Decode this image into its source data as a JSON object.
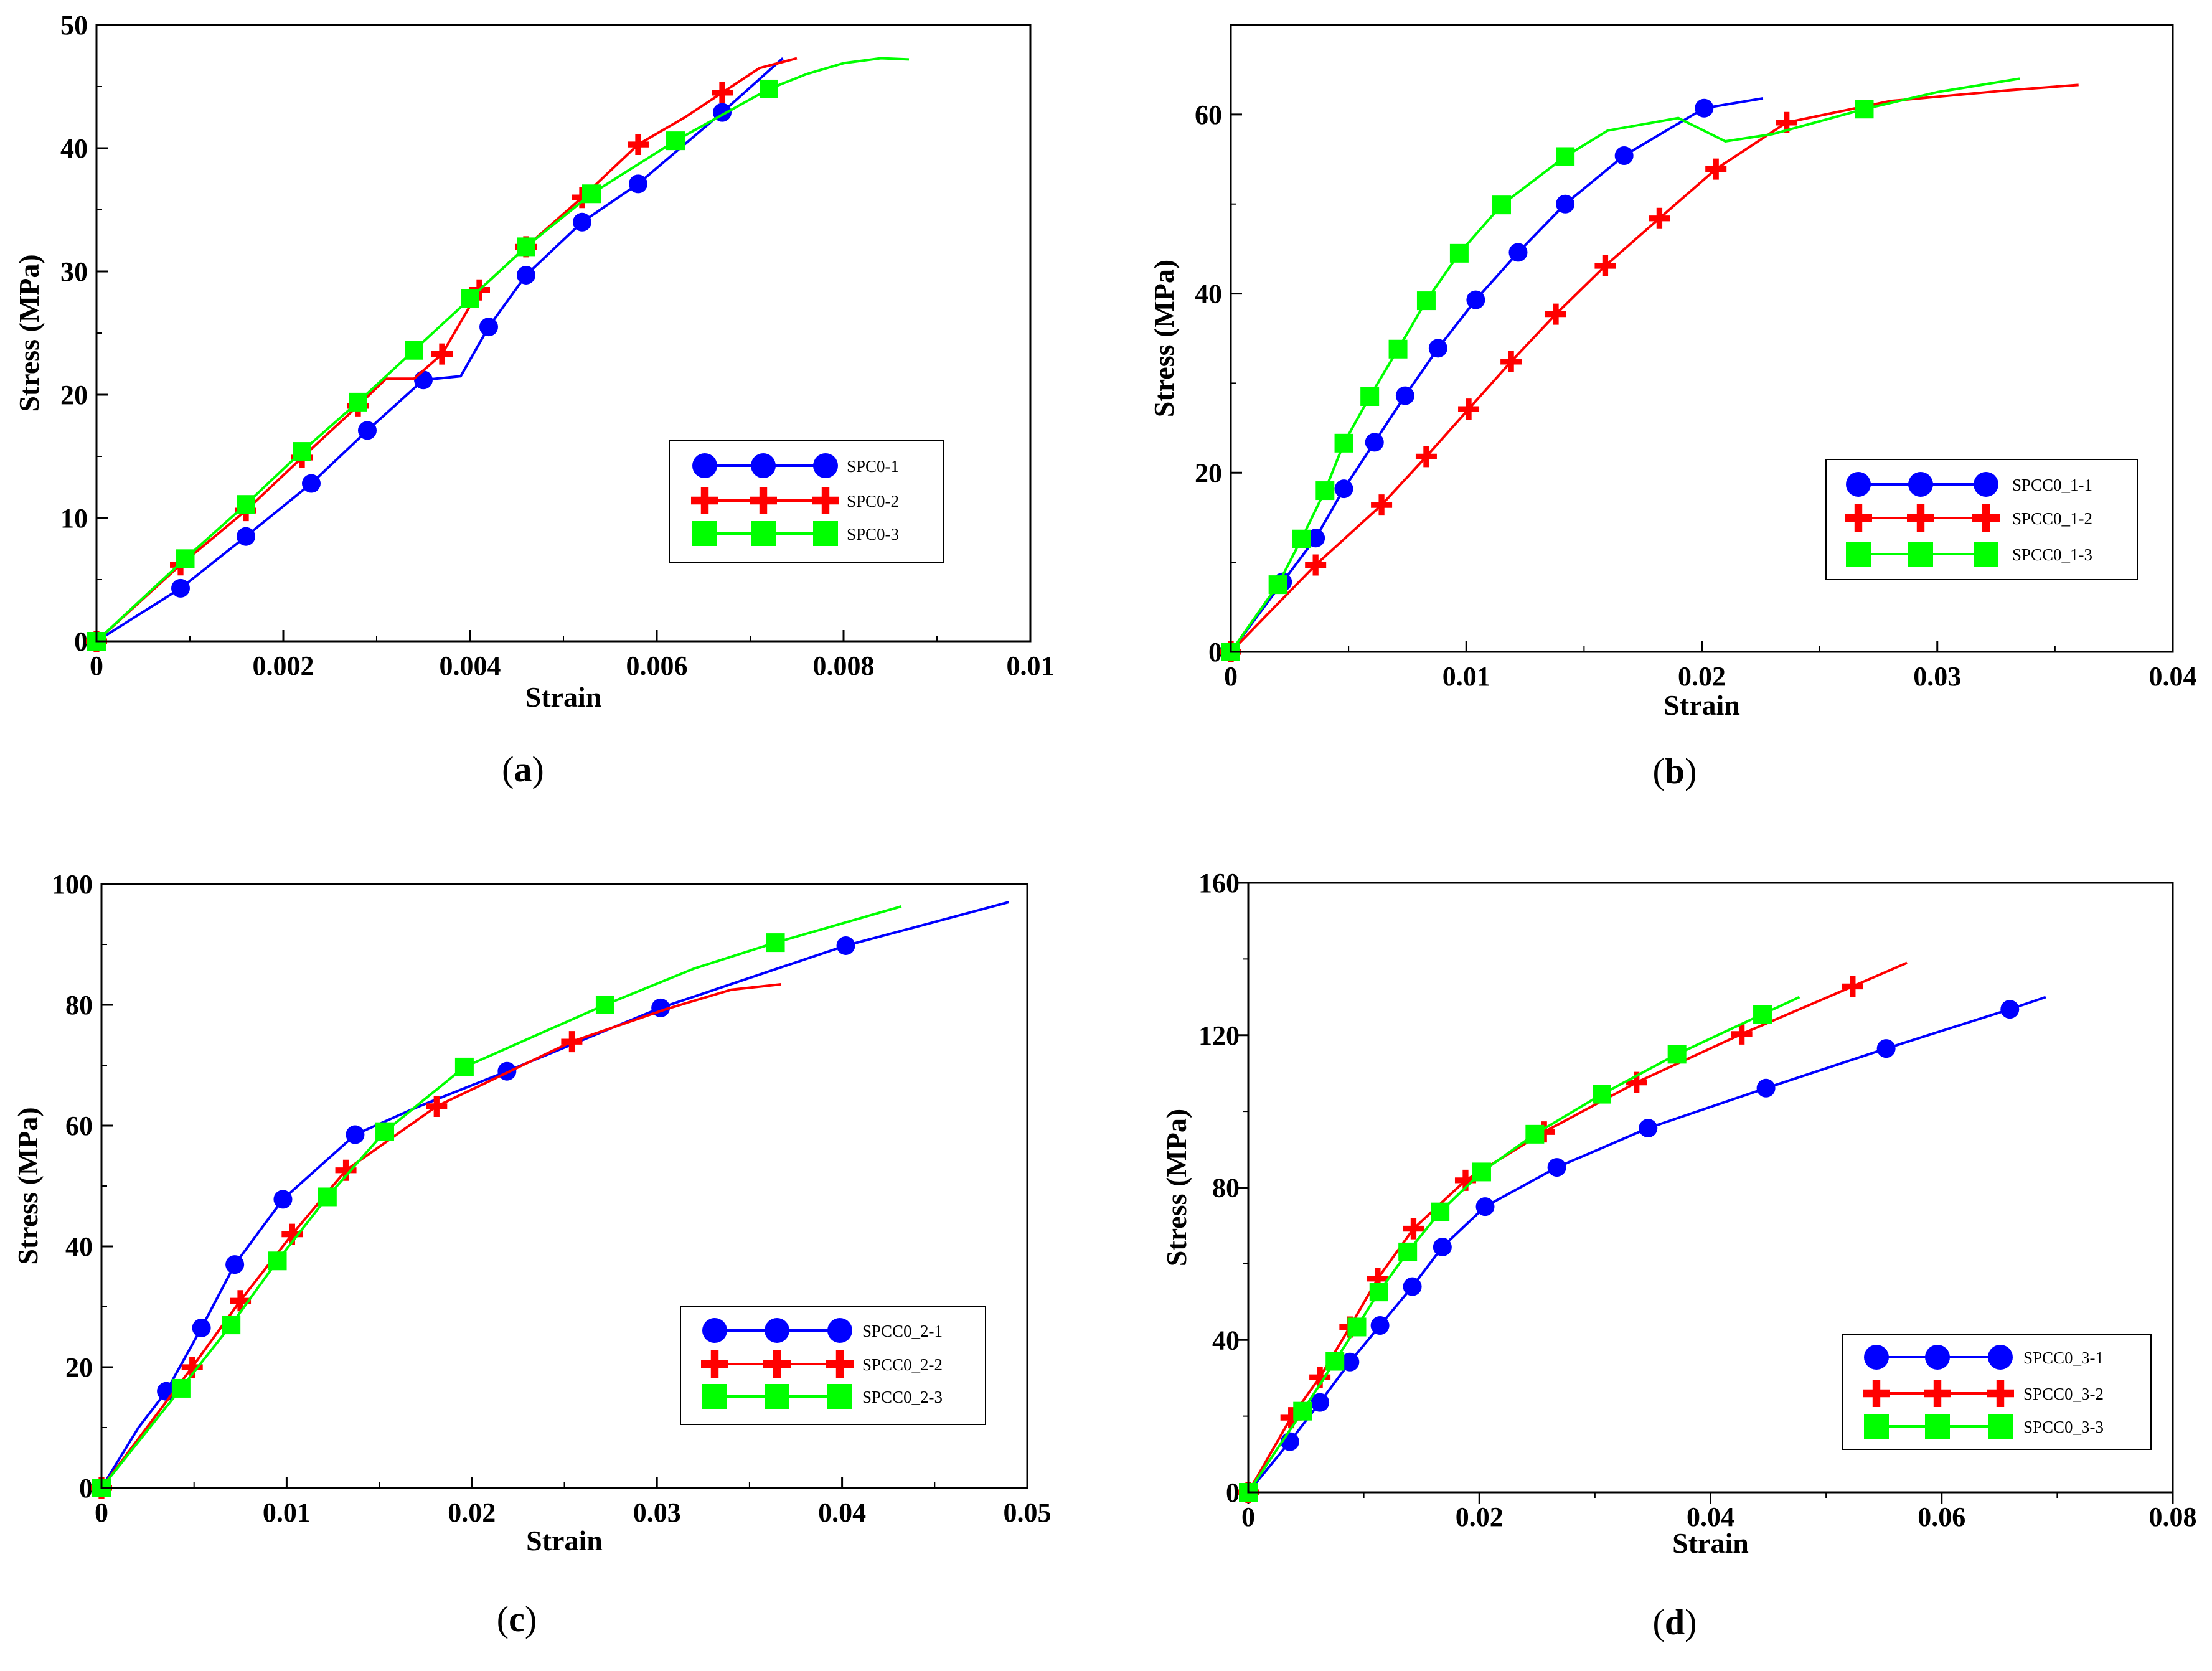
{
  "figure": {
    "panels": [
      "a",
      "b",
      "c",
      "d"
    ]
  },
  "chart_data": [
    {
      "type": "line",
      "panel": "a",
      "caption_letter": "a",
      "xlabel": "Strain",
      "ylabel": "Stress (MPa)",
      "xlim": [
        0,
        0.01
      ],
      "ylim": [
        0,
        50
      ],
      "xticks": [
        0,
        0.002,
        0.004,
        0.006,
        0.008,
        0.01
      ],
      "yticks": [
        0,
        10,
        20,
        30,
        40,
        50
      ],
      "xtick_labels": [
        "0",
        "0.002",
        "0.004",
        "0.006",
        "0.008",
        "0.01"
      ],
      "ytick_labels": [
        "0",
        "10",
        "20",
        "30",
        "40",
        "50"
      ],
      "legend_position": "middle-right",
      "series": [
        {
          "name": "SPC0-1",
          "color": "#0000ff",
          "marker": "circle",
          "x": [
            0,
            0.0009,
            0.0016,
            0.0023,
            0.0029,
            0.0035,
            0.0039,
            0.0042,
            0.0046,
            0.0052,
            0.0058,
            0.0067,
            0.00735
          ],
          "y": [
            0,
            4.3,
            8.5,
            12.8,
            17.1,
            21.2,
            21.5,
            25.5,
            29.7,
            34,
            37.1,
            42.9,
            47.3
          ],
          "markers_x": [
            0,
            0.0009,
            0.0016,
            0.0023,
            0.0029,
            0.0035,
            0.0042,
            0.0046,
            0.0052,
            0.0058,
            0.0067
          ],
          "markers_y": [
            0,
            4.3,
            8.5,
            12.8,
            17.1,
            21.2,
            25.5,
            29.7,
            34,
            37.1,
            42.9
          ]
        },
        {
          "name": "SPC0-2",
          "color": "#ff0000",
          "marker": "plus",
          "x": [
            0,
            0.0009,
            0.0016,
            0.0022,
            0.0028,
            0.0031,
            0.0034,
            0.0037,
            0.0041,
            0.0046,
            0.0052,
            0.0058,
            0.0063,
            0.0067,
            0.0071,
            0.0075
          ],
          "y": [
            0,
            6.2,
            10.6,
            14.9,
            19.1,
            21.3,
            21.3,
            23.3,
            28.5,
            32,
            36,
            40.3,
            42.5,
            44.5,
            46.5,
            47.3
          ],
          "markers_x": [
            0,
            0.0009,
            0.0016,
            0.0022,
            0.0028,
            0.0037,
            0.0041,
            0.0046,
            0.0052,
            0.0058,
            0.0067
          ],
          "markers_y": [
            0,
            6.2,
            10.6,
            14.9,
            19.1,
            23.3,
            28.5,
            32,
            36,
            40.3,
            44.5
          ]
        },
        {
          "name": "SPC0-3",
          "color": "#00ff00",
          "marker": "square",
          "x": [
            0,
            0.00095,
            0.0016,
            0.0022,
            0.0028,
            0.0034,
            0.004,
            0.0046,
            0.0053,
            0.0062,
            0.0072,
            0.0076,
            0.008,
            0.0084,
            0.0087
          ],
          "y": [
            0,
            6.7,
            11.1,
            15.4,
            19.4,
            23.6,
            27.8,
            32,
            36.3,
            40.6,
            44.8,
            46,
            46.9,
            47.3,
            47.2
          ],
          "markers_x": [
            0,
            0.00095,
            0.0016,
            0.0022,
            0.0028,
            0.0034,
            0.004,
            0.0046,
            0.0053,
            0.0062,
            0.0072
          ],
          "markers_y": [
            0,
            6.7,
            11.1,
            15.4,
            19.4,
            23.6,
            27.8,
            32,
            36.3,
            40.6,
            44.8
          ]
        }
      ]
    },
    {
      "type": "line",
      "panel": "b",
      "caption_letter": "b",
      "xlabel": "Strain",
      "ylabel": "Stress (MPa)",
      "xlim": [
        0,
        0.04
      ],
      "ylim": [
        0,
        70
      ],
      "xticks": [
        0,
        0.01,
        0.02,
        0.03,
        0.04
      ],
      "yticks": [
        0,
        20,
        40,
        60
      ],
      "xtick_labels": [
        "0",
        "0.01",
        "0.02",
        "0.03",
        "0.04"
      ],
      "ytick_labels": [
        "0",
        "20",
        "40",
        "60"
      ],
      "legend_position": "middle-right",
      "series": [
        {
          "name": "SPCC0_1-1",
          "color": "#0000ff",
          "marker": "circle",
          "x": [
            0,
            0.0022,
            0.0036,
            0.0048,
            0.0061,
            0.0074,
            0.0088,
            0.0104,
            0.0122,
            0.0142,
            0.0167,
            0.0201,
            0.0226
          ],
          "y": [
            0,
            7.8,
            12.7,
            18.2,
            23.4,
            28.6,
            33.9,
            39.3,
            44.6,
            50,
            55.4,
            60.7,
            61.8
          ],
          "markers_x": [
            0,
            0.0022,
            0.0036,
            0.0048,
            0.0061,
            0.0074,
            0.0088,
            0.0104,
            0.0122,
            0.0142,
            0.0167,
            0.0201
          ],
          "markers_y": [
            0,
            7.8,
            12.7,
            18.2,
            23.4,
            28.6,
            33.9,
            39.3,
            44.6,
            50,
            55.4,
            60.7
          ]
        },
        {
          "name": "SPCC0_1-2",
          "color": "#ff0000",
          "marker": "plus",
          "x": [
            0,
            0.0036,
            0.0064,
            0.0083,
            0.0101,
            0.0119,
            0.0138,
            0.0159,
            0.0182,
            0.0206,
            0.0236,
            0.028,
            0.033,
            0.036
          ],
          "y": [
            0,
            9.7,
            16.4,
            21.8,
            27.1,
            32.4,
            37.7,
            43.1,
            48.4,
            53.9,
            59.1,
            61.5,
            62.7,
            63.3
          ],
          "markers_x": [
            0,
            0.0036,
            0.0064,
            0.0083,
            0.0101,
            0.0119,
            0.0138,
            0.0159,
            0.0182,
            0.0206,
            0.0236
          ],
          "markers_y": [
            0,
            9.7,
            16.4,
            21.8,
            27.1,
            32.4,
            37.7,
            43.1,
            48.4,
            53.9,
            59.1
          ]
        },
        {
          "name": "SPCC0_1-3",
          "color": "#00ff00",
          "marker": "square",
          "x": [
            0,
            0.002,
            0.003,
            0.004,
            0.0048,
            0.0059,
            0.0071,
            0.0083,
            0.0097,
            0.0115,
            0.0142,
            0.016,
            0.019,
            0.021,
            0.023,
            0.0269,
            0.03,
            0.0335
          ],
          "y": [
            0,
            7.5,
            12.6,
            18,
            23.3,
            28.5,
            33.8,
            39.2,
            44.5,
            49.9,
            55.3,
            58.2,
            59.6,
            57.0,
            57.8,
            60.6,
            62.5,
            64
          ],
          "markers_x": [
            0,
            0.002,
            0.003,
            0.004,
            0.0048,
            0.0059,
            0.0071,
            0.0083,
            0.0097,
            0.0115,
            0.0142,
            0.0269
          ],
          "markers_y": [
            0,
            7.5,
            12.6,
            18,
            23.3,
            28.5,
            33.8,
            39.2,
            44.5,
            49.9,
            55.3,
            60.6
          ]
        }
      ]
    },
    {
      "type": "line",
      "panel": "c",
      "caption_letter": "c",
      "xlabel": "Strain",
      "ylabel": "Stress (MPa)",
      "xlim": [
        0,
        0.05
      ],
      "ylim": [
        0,
        100
      ],
      "xticks": [
        0,
        0.01,
        0.02,
        0.03,
        0.04,
        0.05
      ],
      "yticks": [
        0,
        20,
        40,
        60,
        80,
        100
      ],
      "xtick_labels": [
        "0",
        "0.01",
        "0.02",
        "0.03",
        "0.04",
        "0.05"
      ],
      "ytick_labels": [
        "0",
        "20",
        "40",
        "60",
        "80",
        "100"
      ],
      "legend_position": "lower-right",
      "series": [
        {
          "name": "SPCC0_2-1",
          "color": "#0000ff",
          "marker": "circle",
          "x": [
            0,
            0.002,
            0.0035,
            0.0054,
            0.0072,
            0.0098,
            0.0137,
            0.017,
            0.0219,
            0.0302,
            0.0402,
            0.049
          ],
          "y": [
            0,
            10,
            16,
            26.5,
            37,
            47.8,
            58.5,
            63,
            69,
            79.5,
            89.8,
            97
          ],
          "markers_x": [
            0,
            0.0035,
            0.0054,
            0.0072,
            0.0098,
            0.0137,
            0.0219,
            0.0302,
            0.0402
          ],
          "markers_y": [
            0,
            16,
            26.5,
            37,
            47.8,
            58.5,
            69,
            79.5,
            89.8
          ]
        },
        {
          "name": "SPCC0_2-2",
          "color": "#ff0000",
          "marker": "plus",
          "x": [
            0,
            0.0049,
            0.0075,
            0.0103,
            0.0132,
            0.0181,
            0.0254,
            0.0305,
            0.034,
            0.0367
          ],
          "y": [
            0,
            20,
            31,
            42,
            52.6,
            63.2,
            73.9,
            79.3,
            82.5,
            83.4
          ],
          "markers_x": [
            0,
            0.0049,
            0.0075,
            0.0103,
            0.0132,
            0.0181,
            0.0254
          ],
          "markers_y": [
            0,
            20,
            31,
            42,
            52.6,
            63.2,
            73.9
          ]
        },
        {
          "name": "SPCC0_2-3",
          "color": "#00ff00",
          "marker": "square",
          "x": [
            0,
            0.0043,
            0.007,
            0.0095,
            0.0122,
            0.0153,
            0.0196,
            0.0272,
            0.032,
            0.0364,
            0.0432
          ],
          "y": [
            0,
            16.5,
            27,
            37.6,
            48.2,
            59,
            69.7,
            80,
            86,
            90.3,
            96.3
          ],
          "markers_x": [
            0,
            0.0043,
            0.007,
            0.0095,
            0.0122,
            0.0153,
            0.0196,
            0.0272,
            0.0364
          ],
          "markers_y": [
            0,
            16.5,
            27,
            37.6,
            48.2,
            59,
            69.7,
            80,
            90.3
          ]
        }
      ]
    },
    {
      "type": "line",
      "panel": "d",
      "caption_letter": "d",
      "xlabel": "Strain",
      "ylabel": "Stress (MPa)",
      "xlim": [
        0,
        0.08
      ],
      "ylim": [
        0,
        160
      ],
      "xticks": [
        0,
        0.02,
        0.04,
        0.06,
        0.08
      ],
      "yticks": [
        0,
        40,
        80,
        120,
        160
      ],
      "xtick_labels": [
        "0",
        "0.02",
        "0.04",
        "0.06",
        "0.08"
      ],
      "ytick_labels": [
        "0",
        "40",
        "80",
        "120",
        "160"
      ],
      "legend_position": "lower-right",
      "series": [
        {
          "name": "SPCC0_3-1",
          "color": "#0000ff",
          "marker": "circle",
          "x": [
            0,
            0.0036,
            0.0062,
            0.0088,
            0.0114,
            0.0142,
            0.0168,
            0.0205,
            0.0267,
            0.0346,
            0.0448,
            0.0552,
            0.0659,
            0.069
          ],
          "y": [
            0,
            13.3,
            23.6,
            34.2,
            43.8,
            54,
            64.4,
            75,
            85.3,
            95.6,
            106.1,
            116.5,
            126.8,
            130
          ],
          "markers_x": [
            0,
            0.0036,
            0.0062,
            0.0088,
            0.0114,
            0.0142,
            0.0168,
            0.0205,
            0.0267,
            0.0346,
            0.0448,
            0.0552,
            0.0659
          ],
          "markers_y": [
            0,
            13.3,
            23.6,
            34.2,
            43.8,
            54,
            64.4,
            75,
            85.3,
            95.6,
            106.1,
            116.5,
            126.8
          ]
        },
        {
          "name": "SPCC0_3-2",
          "color": "#ff0000",
          "marker": "plus",
          "x": [
            0,
            0.0037,
            0.0062,
            0.0088,
            0.0112,
            0.0143,
            0.0188,
            0.0256,
            0.0336,
            0.0427,
            0.0523,
            0.057
          ],
          "y": [
            0,
            19.6,
            30.2,
            43.4,
            56.1,
            69.2,
            81.9,
            94.6,
            107.6,
            120.3,
            132.8,
            139
          ],
          "markers_x": [
            0,
            0.0037,
            0.0062,
            0.0088,
            0.0112,
            0.0143,
            0.0188,
            0.0256,
            0.0336,
            0.0427,
            0.0523
          ],
          "markers_y": [
            0,
            19.6,
            30.2,
            43.4,
            56.1,
            69.2,
            81.9,
            94.6,
            107.6,
            120.3,
            132.8
          ]
        },
        {
          "name": "SPCC0_3-3",
          "color": "#00ff00",
          "marker": "square",
          "x": [
            0,
            0.0047,
            0.0075,
            0.0094,
            0.0113,
            0.0138,
            0.0166,
            0.0202,
            0.0248,
            0.0306,
            0.0371,
            0.0445,
            0.0477
          ],
          "y": [
            0,
            21.3,
            34.4,
            43.4,
            52.6,
            63.1,
            73.6,
            84.1,
            94,
            104.5,
            115,
            125.5,
            130
          ],
          "markers_x": [
            0,
            0.0047,
            0.0075,
            0.0094,
            0.0113,
            0.0138,
            0.0166,
            0.0202,
            0.0248,
            0.0306,
            0.0371,
            0.0445
          ],
          "markers_y": [
            0,
            21.3,
            34.4,
            43.4,
            52.6,
            63.1,
            73.6,
            84.1,
            94,
            104.5,
            115,
            125.5
          ]
        }
      ]
    }
  ]
}
